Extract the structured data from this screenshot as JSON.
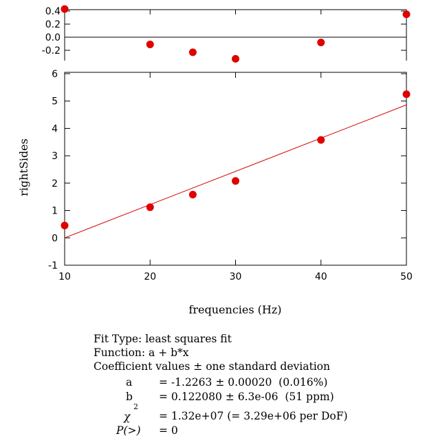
{
  "chart_data": [
    {
      "type": "scatter",
      "role": "residuals",
      "x": [
        10,
        20,
        25,
        30,
        40,
        50
      ],
      "y": [
        0.43,
        -0.11,
        -0.23,
        -0.33,
        -0.08,
        0.35
      ],
      "ylim": [
        -0.4,
        0.45
      ],
      "yticks": [
        "0.4",
        "0.2",
        "0.0",
        "-0.2"
      ],
      "xlim": [
        10,
        50
      ],
      "zero_line": true,
      "grid": false
    },
    {
      "type": "scatter",
      "role": "main",
      "x": [
        10,
        20,
        25,
        30,
        40,
        50
      ],
      "y": [
        0.45,
        1.12,
        1.58,
        2.08,
        3.58,
        5.25
      ],
      "fit_line": {
        "x": [
          10,
          50
        ],
        "y": [
          0.0,
          4.86
        ]
      },
      "xlim": [
        10,
        50
      ],
      "ylim": [
        -1,
        6
      ],
      "xticks": [
        "10",
        "20",
        "30",
        "40",
        "50"
      ],
      "yticks": [
        "6",
        "5",
        "4",
        "3",
        "2",
        "1",
        "0",
        "-1"
      ],
      "xlabel": "frequencies (Hz)",
      "ylabel": "rightSides",
      "grid": false
    }
  ],
  "colors": {
    "marker": "#e00000",
    "fit_line": "#d40000",
    "axis": "#000000"
  },
  "fit_info": {
    "fit_type": "Fit Type: least squares fit",
    "function": "Function: a + b*x",
    "coef_header": "Coefficient values ± one standard deviation",
    "rows": [
      {
        "name": "a",
        "value": "= -1.2263 ± 0.00020  (0.016%)"
      },
      {
        "name": "b",
        "value": "= 0.122080 ± 6.3e-06  (51 ppm)"
      },
      {
        "name": "χ",
        "sup": "2",
        "value": "= 1.32e+07 (= 3.29e+06 per DoF)"
      },
      {
        "name": "P(>)",
        "value": "= 0"
      }
    ]
  }
}
